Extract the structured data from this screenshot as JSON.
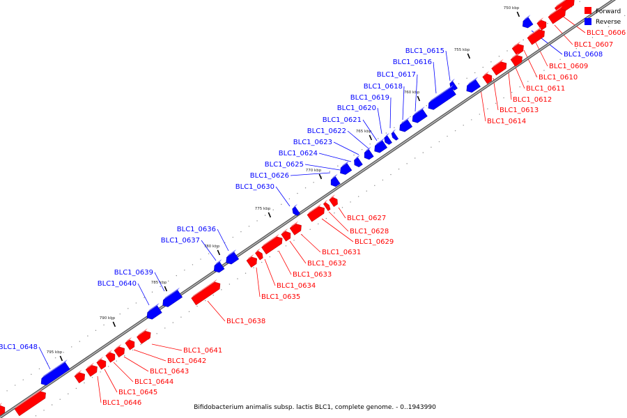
{
  "colors": {
    "forward": "#ff0000",
    "reverse": "#0000ff",
    "backbone": "#999999"
  },
  "legend": [
    {
      "label": "Forward",
      "color": "#ff0000"
    },
    {
      "label": "Reverse",
      "color": "#0000ff"
    }
  ],
  "caption": "Bifidobacterium animalis subsp. lactis BLC1, complete genome. - 0..1943990",
  "scale_ticks": [
    "750 kbp",
    "755 kbp",
    "760 kbp",
    "765 kbp",
    "770 kbp",
    "775 kbp",
    "780 kbp",
    "785 kbp",
    "790 kbp",
    "795 kbp"
  ],
  "genes": [
    {
      "id": "BLC1_0606",
      "strand": "forward"
    },
    {
      "id": "BLC1_0607",
      "strand": "forward"
    },
    {
      "id": "BLC1_0608",
      "strand": "reverse"
    },
    {
      "id": "BLC1_0609",
      "strand": "forward"
    },
    {
      "id": "BLC1_0610",
      "strand": "forward"
    },
    {
      "id": "BLC1_0611",
      "strand": "forward"
    },
    {
      "id": "BLC1_0612",
      "strand": "forward"
    },
    {
      "id": "BLC1_0613",
      "strand": "forward"
    },
    {
      "id": "BLC1_0614",
      "strand": "forward"
    },
    {
      "id": "BLC1_0615",
      "strand": "reverse"
    },
    {
      "id": "BLC1_0616",
      "strand": "reverse"
    },
    {
      "id": "BLC1_0617",
      "strand": "reverse"
    },
    {
      "id": "BLC1_0618",
      "strand": "reverse"
    },
    {
      "id": "BLC1_0619",
      "strand": "reverse"
    },
    {
      "id": "BLC1_0620",
      "strand": "reverse"
    },
    {
      "id": "BLC1_0621",
      "strand": "reverse"
    },
    {
      "id": "BLC1_0622",
      "strand": "reverse"
    },
    {
      "id": "BLC1_0623",
      "strand": "reverse"
    },
    {
      "id": "BLC1_0624",
      "strand": "reverse"
    },
    {
      "id": "BLC1_0625",
      "strand": "reverse"
    },
    {
      "id": "BLC1_0626",
      "strand": "reverse"
    },
    {
      "id": "BLC1_0627",
      "strand": "forward"
    },
    {
      "id": "BLC1_0628",
      "strand": "forward"
    },
    {
      "id": "BLC1_0629",
      "strand": "forward"
    },
    {
      "id": "BLC1_0630",
      "strand": "reverse"
    },
    {
      "id": "BLC1_0631",
      "strand": "forward"
    },
    {
      "id": "BLC1_0632",
      "strand": "forward"
    },
    {
      "id": "BLC1_0633",
      "strand": "forward"
    },
    {
      "id": "BLC1_0634",
      "strand": "forward"
    },
    {
      "id": "BLC1_0635",
      "strand": "forward"
    },
    {
      "id": "BLC1_0636",
      "strand": "reverse"
    },
    {
      "id": "BLC1_0637",
      "strand": "reverse"
    },
    {
      "id": "BLC1_0638",
      "strand": "forward"
    },
    {
      "id": "BLC1_0639",
      "strand": "reverse"
    },
    {
      "id": "BLC1_0640",
      "strand": "reverse"
    },
    {
      "id": "BLC1_0641",
      "strand": "forward"
    },
    {
      "id": "BLC1_0642",
      "strand": "forward"
    },
    {
      "id": "BLC1_0643",
      "strand": "forward"
    },
    {
      "id": "BLC1_0644",
      "strand": "forward"
    },
    {
      "id": "BLC1_0645",
      "strand": "forward"
    },
    {
      "id": "BLC1_0646",
      "strand": "forward"
    },
    {
      "id": "BLC1_0648",
      "strand": "reverse"
    }
  ]
}
